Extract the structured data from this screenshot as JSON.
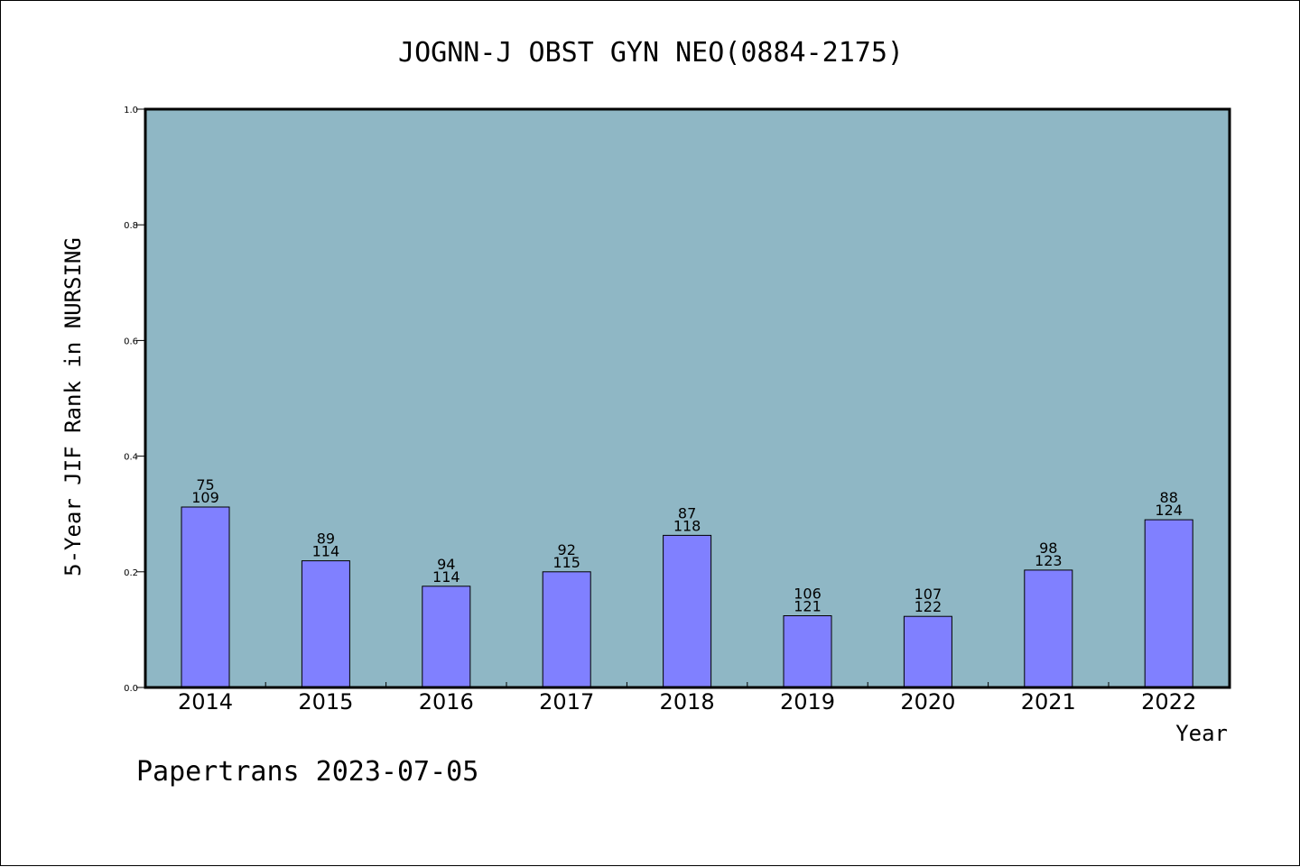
{
  "chart_data": {
    "type": "bar",
    "title": "JOGNN-J OBST GYN NEO(0884-2175)",
    "xlabel": "Year",
    "ylabel": "5-Year JIF Rank in NURSING",
    "ylim": [
      0,
      1.0
    ],
    "yticks": [
      "0.0",
      "0.2",
      "0.4",
      "0.6",
      "0.8",
      "1.0"
    ],
    "categories": [
      "2014",
      "2015",
      "2016",
      "2017",
      "2018",
      "2019",
      "2020",
      "2021",
      "2022"
    ],
    "values": [
      0.312,
      0.219,
      0.175,
      0.2,
      0.263,
      0.124,
      0.123,
      0.203,
      0.29
    ],
    "rank_labels": [
      "75",
      "89",
      "94",
      "92",
      "87",
      "106",
      "107",
      "98",
      "88"
    ],
    "total_labels": [
      "109",
      "114",
      "114",
      "115",
      "118",
      "121",
      "122",
      "123",
      "124"
    ],
    "grid": false,
    "legend": "none",
    "colors": {
      "plot_background": "#8fb7c5",
      "bar_fill": "#8080ff",
      "bar_stroke": "#000000"
    }
  },
  "footer": "Papertrans 2023-07-05"
}
